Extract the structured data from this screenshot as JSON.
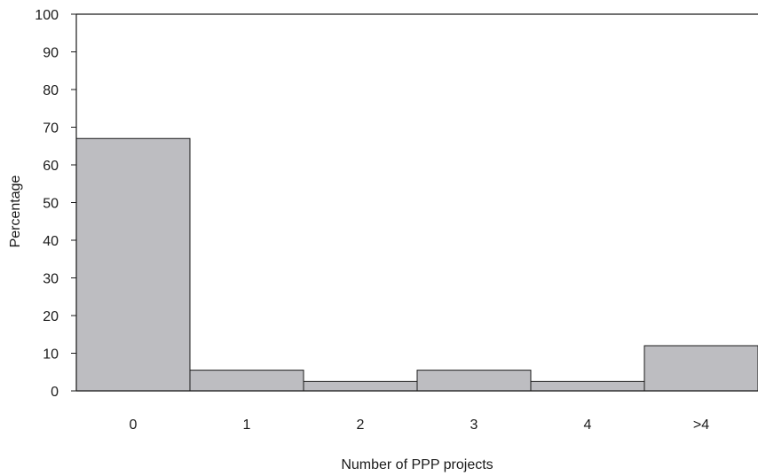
{
  "chart_data": {
    "type": "bar",
    "categories": [
      "0",
      "1",
      "2",
      "3",
      "4",
      ">4"
    ],
    "values": [
      67,
      5.5,
      2.5,
      5.5,
      2.5,
      12
    ],
    "title": "",
    "xlabel": "Number of PPP projects",
    "ylabel": "Percentage",
    "ylim": [
      0,
      100
    ],
    "yticks": [
      "0",
      "10",
      "20",
      "30",
      "40",
      "50",
      "60",
      "70",
      "80",
      "90",
      "100"
    ],
    "grid": false,
    "bar_color": "#bdbdc1",
    "edge_color": "#1a1a1a"
  }
}
